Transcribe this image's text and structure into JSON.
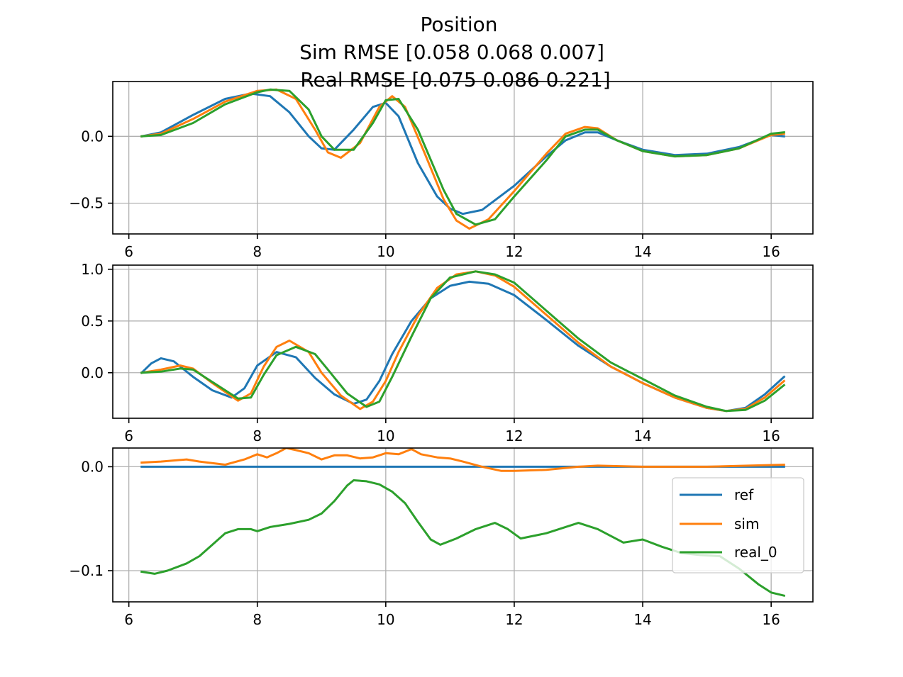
{
  "figure": {
    "title_lines": [
      "Position",
      "Sim RMSE [0.058 0.068 0.007]",
      "Real RMSE [0.075 0.086 0.221]"
    ]
  },
  "colors": {
    "ref": "#1f77b4",
    "sim": "#ff7f0e",
    "real_0": "#2ca02c",
    "grid": "#b0b0b0"
  },
  "legend": {
    "placement": "lower-right of bottom subplot",
    "entries": [
      "ref",
      "sim",
      "real_0"
    ]
  },
  "chart_data": [
    {
      "type": "line",
      "xlim": [
        5.75,
        16.65
      ],
      "ylim": [
        -0.73,
        0.41
      ],
      "xticks": [
        6,
        8,
        10,
        12,
        14,
        16
      ],
      "xtick_labels": [
        "6",
        "8",
        "10",
        "12",
        "14",
        "16"
      ],
      "yticks": [
        0.0,
        -0.5
      ],
      "ytick_labels": [
        "0.0",
        "−0.5"
      ],
      "grid": true,
      "series": [
        {
          "name": "ref",
          "x": [
            6.2,
            6.5,
            7.0,
            7.5,
            7.9,
            8.2,
            8.5,
            8.8,
            9.0,
            9.2,
            9.5,
            9.8,
            10.0,
            10.2,
            10.5,
            10.8,
            11.0,
            11.2,
            11.5,
            12.0,
            12.5,
            12.8,
            13.1,
            13.3,
            13.6,
            14.0,
            14.5,
            15.0,
            15.5,
            16.0,
            16.2
          ],
          "y": [
            0.0,
            0.03,
            0.16,
            0.28,
            0.32,
            0.3,
            0.18,
            0.0,
            -0.09,
            -0.1,
            0.05,
            0.22,
            0.25,
            0.15,
            -0.2,
            -0.45,
            -0.54,
            -0.58,
            -0.55,
            -0.37,
            -0.15,
            -0.03,
            0.03,
            0.03,
            -0.03,
            -0.1,
            -0.14,
            -0.13,
            -0.08,
            0.01,
            0.0
          ]
        },
        {
          "name": "sim",
          "x": [
            6.2,
            6.5,
            7.0,
            7.5,
            8.0,
            8.3,
            8.6,
            8.9,
            9.1,
            9.3,
            9.6,
            9.9,
            10.1,
            10.3,
            10.6,
            10.9,
            11.1,
            11.3,
            11.6,
            12.0,
            12.5,
            12.8,
            13.1,
            13.3,
            13.6,
            14.0,
            14.5,
            15.0,
            15.5,
            16.0,
            16.2
          ],
          "y": [
            0.0,
            0.02,
            0.13,
            0.26,
            0.34,
            0.35,
            0.28,
            0.05,
            -0.12,
            -0.16,
            -0.05,
            0.22,
            0.3,
            0.22,
            -0.12,
            -0.47,
            -0.63,
            -0.69,
            -0.62,
            -0.41,
            -0.13,
            0.02,
            0.07,
            0.06,
            -0.03,
            -0.11,
            -0.15,
            -0.14,
            -0.09,
            0.01,
            0.02
          ]
        },
        {
          "name": "real_0",
          "x": [
            6.2,
            6.5,
            7.0,
            7.5,
            8.0,
            8.2,
            8.5,
            8.8,
            9.0,
            9.2,
            9.5,
            9.8,
            10.0,
            10.2,
            10.5,
            10.9,
            11.1,
            11.4,
            11.7,
            12.0,
            12.5,
            12.8,
            13.1,
            13.3,
            13.6,
            14.0,
            14.5,
            15.0,
            15.5,
            16.0,
            16.2
          ],
          "y": [
            0.0,
            0.01,
            0.1,
            0.24,
            0.33,
            0.35,
            0.34,
            0.2,
            0.0,
            -0.1,
            -0.1,
            0.1,
            0.27,
            0.28,
            0.05,
            -0.4,
            -0.58,
            -0.66,
            -0.62,
            -0.45,
            -0.18,
            0.0,
            0.05,
            0.05,
            -0.03,
            -0.11,
            -0.15,
            -0.14,
            -0.09,
            0.02,
            0.03
          ]
        }
      ]
    },
    {
      "type": "line",
      "xlim": [
        5.75,
        16.65
      ],
      "ylim": [
        -0.44,
        1.04
      ],
      "xticks": [
        6,
        8,
        10,
        12,
        14,
        16
      ],
      "xtick_labels": [
        "6",
        "8",
        "10",
        "12",
        "14",
        "16"
      ],
      "yticks": [
        1.0,
        0.5,
        0.0
      ],
      "ytick_labels": [
        "1.0",
        "0.5",
        "0.0"
      ],
      "grid": true,
      "series": [
        {
          "name": "ref",
          "x": [
            6.2,
            6.35,
            6.5,
            6.7,
            7.0,
            7.3,
            7.6,
            7.8,
            8.0,
            8.3,
            8.6,
            8.9,
            9.2,
            9.5,
            9.7,
            9.9,
            10.1,
            10.4,
            10.7,
            11.0,
            11.3,
            11.6,
            12.0,
            12.5,
            13.0,
            13.5,
            14.0,
            14.5,
            15.0,
            15.3,
            15.6,
            15.9,
            16.2
          ],
          "y": [
            0.0,
            0.09,
            0.14,
            0.11,
            -0.04,
            -0.17,
            -0.24,
            -0.15,
            0.07,
            0.2,
            0.15,
            -0.05,
            -0.21,
            -0.3,
            -0.26,
            -0.08,
            0.18,
            0.5,
            0.72,
            0.84,
            0.88,
            0.86,
            0.75,
            0.51,
            0.26,
            0.06,
            -0.1,
            -0.24,
            -0.34,
            -0.37,
            -0.34,
            -0.21,
            -0.04
          ]
        },
        {
          "name": "sim",
          "x": [
            6.2,
            6.5,
            6.8,
            7.0,
            7.3,
            7.7,
            7.9,
            8.1,
            8.3,
            8.5,
            8.8,
            9.0,
            9.3,
            9.6,
            9.8,
            10.0,
            10.2,
            10.5,
            10.8,
            11.1,
            11.4,
            11.7,
            12.0,
            12.5,
            13.0,
            13.5,
            14.0,
            14.5,
            15.0,
            15.3,
            15.6,
            15.9,
            16.2
          ],
          "y": [
            0.0,
            0.03,
            0.07,
            0.04,
            -0.1,
            -0.27,
            -0.2,
            0.06,
            0.25,
            0.31,
            0.2,
            0.0,
            -0.22,
            -0.35,
            -0.28,
            -0.08,
            0.2,
            0.55,
            0.82,
            0.95,
            0.98,
            0.94,
            0.83,
            0.56,
            0.29,
            0.06,
            -0.1,
            -0.24,
            -0.34,
            -0.37,
            -0.35,
            -0.24,
            -0.08
          ]
        },
        {
          "name": "real_0",
          "x": [
            6.2,
            6.5,
            6.8,
            7.0,
            7.3,
            7.7,
            7.9,
            8.1,
            8.3,
            8.6,
            8.9,
            9.1,
            9.4,
            9.7,
            9.9,
            10.1,
            10.4,
            10.7,
            11.0,
            11.4,
            11.7,
            12.0,
            12.5,
            13.0,
            13.5,
            14.0,
            14.5,
            15.0,
            15.3,
            15.6,
            15.9,
            16.2
          ],
          "y": [
            0.0,
            0.01,
            0.04,
            0.03,
            -0.09,
            -0.25,
            -0.24,
            -0.02,
            0.17,
            0.25,
            0.18,
            0.03,
            -0.2,
            -0.33,
            -0.28,
            -0.04,
            0.35,
            0.72,
            0.92,
            0.98,
            0.95,
            0.87,
            0.6,
            0.33,
            0.1,
            -0.06,
            -0.22,
            -0.33,
            -0.37,
            -0.36,
            -0.27,
            -0.12
          ]
        }
      ]
    },
    {
      "type": "line",
      "xlim": [
        5.75,
        16.65
      ],
      "ylim": [
        -0.13,
        0.018
      ],
      "xticks": [
        6,
        8,
        10,
        12,
        14,
        16
      ],
      "xtick_labels": [
        "6",
        "8",
        "10",
        "12",
        "14",
        "16"
      ],
      "yticks": [
        0.0,
        -0.1
      ],
      "ytick_labels": [
        "0.0",
        "−0.1"
      ],
      "grid": true,
      "series": [
        {
          "name": "ref",
          "x": [
            6.2,
            16.2
          ],
          "y": [
            0.0,
            0.0
          ]
        },
        {
          "name": "sim",
          "x": [
            6.2,
            6.5,
            6.9,
            7.1,
            7.5,
            7.8,
            8.0,
            8.15,
            8.3,
            8.45,
            8.6,
            8.8,
            9.0,
            9.2,
            9.4,
            9.6,
            9.8,
            10.0,
            10.2,
            10.4,
            10.55,
            10.8,
            11.0,
            11.2,
            11.5,
            11.8,
            12.0,
            12.5,
            13.0,
            13.3,
            14.0,
            15.0,
            16.2
          ],
          "y": [
            0.004,
            0.005,
            0.007,
            0.005,
            0.002,
            0.007,
            0.012,
            0.009,
            0.013,
            0.018,
            0.016,
            0.013,
            0.007,
            0.011,
            0.011,
            0.008,
            0.009,
            0.013,
            0.012,
            0.017,
            0.012,
            0.009,
            0.008,
            0.005,
            0.0,
            -0.004,
            -0.004,
            -0.003,
            0.0,
            0.001,
            0.0,
            0.0,
            0.002
          ]
        },
        {
          "name": "real_0",
          "x": [
            6.2,
            6.4,
            6.6,
            6.9,
            7.1,
            7.3,
            7.5,
            7.7,
            7.9,
            8.0,
            8.2,
            8.5,
            8.8,
            9.0,
            9.2,
            9.4,
            9.5,
            9.7,
            9.9,
            10.1,
            10.3,
            10.5,
            10.7,
            10.85,
            11.1,
            11.4,
            11.7,
            11.9,
            12.1,
            12.5,
            13.0,
            13.3,
            13.7,
            14.0,
            14.3,
            14.6,
            14.9,
            15.2,
            15.5,
            15.8,
            16.0,
            16.2
          ],
          "y": [
            -0.101,
            -0.103,
            -0.1,
            -0.093,
            -0.086,
            -0.075,
            -0.064,
            -0.06,
            -0.06,
            -0.062,
            -0.058,
            -0.055,
            -0.051,
            -0.045,
            -0.033,
            -0.018,
            -0.013,
            -0.014,
            -0.017,
            -0.024,
            -0.035,
            -0.053,
            -0.07,
            -0.075,
            -0.069,
            -0.06,
            -0.054,
            -0.06,
            -0.069,
            -0.064,
            -0.054,
            -0.06,
            -0.073,
            -0.07,
            -0.077,
            -0.083,
            -0.085,
            -0.086,
            -0.098,
            -0.113,
            -0.121,
            -0.124
          ]
        }
      ]
    }
  ]
}
